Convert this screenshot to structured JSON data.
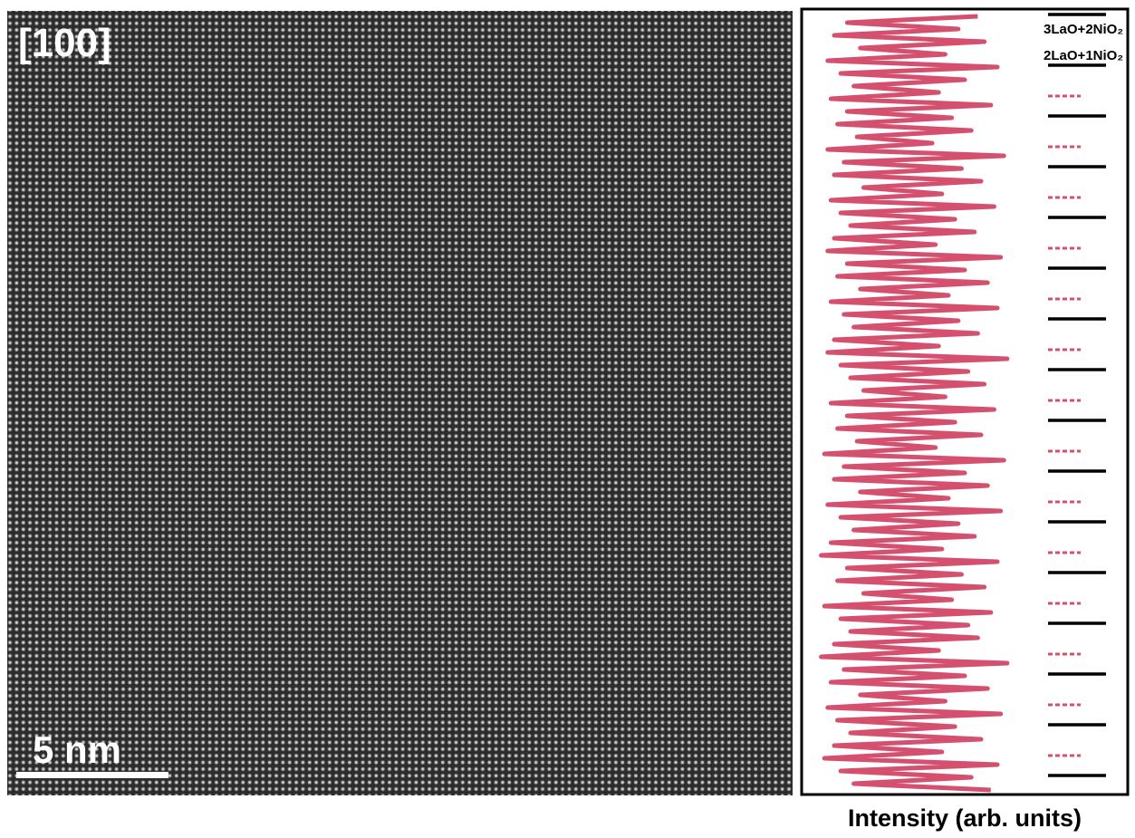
{
  "image": {
    "zone_axis": "[100]",
    "scale_bar": "5 nm"
  },
  "chart_data": {
    "type": "line",
    "xlabel": "Intensity (arb. units)",
    "color": "#d4506e",
    "xlim": [
      0,
      100
    ],
    "annotations": [
      "3LaO+2NiO₂",
      "2LaO+1NiO₂"
    ],
    "values": [
      54,
      14,
      48,
      10,
      56,
      18,
      44,
      8,
      60,
      12,
      50,
      16,
      42,
      9,
      58,
      14,
      46,
      11,
      52,
      17,
      40,
      8,
      62,
      13,
      49,
      10,
      55,
      19,
      43,
      9,
      59,
      12,
      47,
      15,
      53,
      10,
      41,
      8,
      61,
      14,
      50,
      11,
      57,
      18,
      45,
      9,
      60,
      13,
      48,
      16,
      54,
      10,
      42,
      8,
      63,
      12,
      51,
      15,
      56,
      19,
      44,
      9,
      59,
      14,
      47,
      11,
      55,
      17,
      41,
      7,
      62,
      13,
      50,
      10,
      57,
      18,
      45,
      8,
      61,
      12,
      48,
      16,
      53,
      9,
      43,
      6,
      60,
      14,
      49,
      11,
      56,
      19,
      46,
      7,
      58,
      12,
      51,
      15,
      54,
      10,
      42,
      6,
      63,
      13,
      50,
      9,
      57,
      18,
      44,
      8,
      61,
      11,
      47,
      15,
      55,
      10,
      43,
      7,
      60,
      12,
      52,
      16,
      58
    ]
  }
}
